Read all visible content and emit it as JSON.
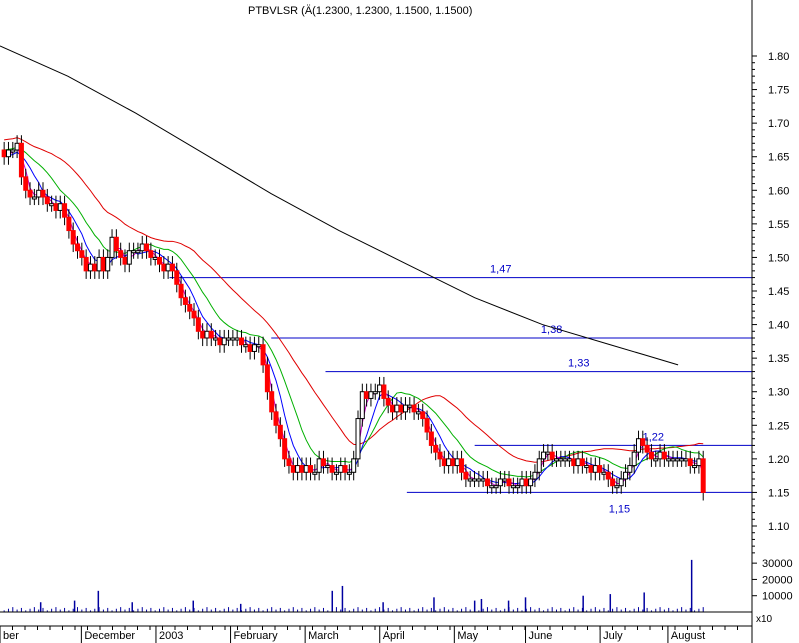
{
  "chart_data": {
    "type": "candlestick",
    "title": "PTBVLSR (Ä(1.2300, 1.2300, 1.1500, 1.1500)",
    "price_axis": {
      "ticks": [
        "1.80",
        "1.75",
        "1.70",
        "1.65",
        "1.60",
        "1.55",
        "1.50",
        "1.45",
        "1.40",
        "1.35",
        "1.30",
        "1.25",
        "1.20",
        "1.15",
        "1.10"
      ],
      "range": [
        1.05,
        1.87
      ]
    },
    "volume_axis": {
      "ticks": [
        "30000",
        "20000",
        "10000"
      ],
      "multiplier": "x10",
      "range": [
        0,
        35000
      ]
    },
    "x_axis": {
      "labels": [
        "ber",
        "December",
        "2003",
        "February",
        "March",
        "April",
        "May",
        "June",
        "July",
        "August"
      ],
      "positions": [
        0,
        24,
        46,
        68,
        90,
        112,
        134,
        155,
        177,
        197
      ]
    },
    "horizontal_lines": [
      {
        "label": "1,47",
        "value": 1.47,
        "from": 50
      },
      {
        "label": "1,38",
        "value": 1.38,
        "from": 80
      },
      {
        "label": "1,33",
        "value": 1.33,
        "from": 96
      },
      {
        "label": "1,22",
        "value": 1.22,
        "from": 140
      },
      {
        "label": "1,15",
        "value": 1.15,
        "from": 120
      }
    ],
    "line_color": "#0000c8",
    "ma_colors": {
      "long": "#000000",
      "medium": "#e00000",
      "short": "#00b000",
      "fast": "#0000ff",
      "fastest": "#d000d0"
    },
    "long_ma": [
      [
        0,
        1.815
      ],
      [
        20,
        1.77
      ],
      [
        40,
        1.715
      ],
      [
        60,
        1.655
      ],
      [
        80,
        1.595
      ],
      [
        100,
        1.54
      ],
      [
        120,
        1.49
      ],
      [
        140,
        1.44
      ],
      [
        160,
        1.4
      ],
      [
        180,
        1.37
      ],
      [
        190,
        1.355
      ],
      [
        200,
        1.34
      ]
    ],
    "closes": [
      1.65,
      1.66,
      1.66,
      1.67,
      1.62,
      1.6,
      1.59,
      1.59,
      1.6,
      1.59,
      1.58,
      1.58,
      1.57,
      1.58,
      1.56,
      1.54,
      1.52,
      1.51,
      1.5,
      1.48,
      1.49,
      1.48,
      1.5,
      1.48,
      1.5,
      1.53,
      1.51,
      1.5,
      1.49,
      1.51,
      1.51,
      1.51,
      1.52,
      1.51,
      1.5,
      1.5,
      1.49,
      1.48,
      1.49,
      1.48,
      1.46,
      1.44,
      1.43,
      1.42,
      1.41,
      1.39,
      1.38,
      1.39,
      1.38,
      1.38,
      1.37,
      1.38,
      1.38,
      1.38,
      1.38,
      1.37,
      1.37,
      1.36,
      1.37,
      1.37,
      1.34,
      1.3,
      1.27,
      1.25,
      1.23,
      1.2,
      1.19,
      1.18,
      1.19,
      1.18,
      1.19,
      1.18,
      1.18,
      1.2,
      1.19,
      1.19,
      1.18,
      1.18,
      1.19,
      1.18,
      1.18,
      1.2,
      1.26,
      1.3,
      1.29,
      1.3,
      1.3,
      1.31,
      1.29,
      1.28,
      1.27,
      1.28,
      1.27,
      1.28,
      1.28,
      1.27,
      1.27,
      1.26,
      1.24,
      1.22,
      1.21,
      1.2,
      1.19,
      1.2,
      1.19,
      1.2,
      1.18,
      1.17,
      1.17,
      1.17,
      1.17,
      1.17,
      1.16,
      1.16,
      1.16,
      1.17,
      1.17,
      1.16,
      1.16,
      1.16,
      1.17,
      1.16,
      1.17,
      1.18,
      1.2,
      1.21,
      1.21,
      1.2,
      1.2,
      1.2,
      1.2,
      1.2,
      1.19,
      1.2,
      1.19,
      1.19,
      1.18,
      1.19,
      1.18,
      1.18,
      1.17,
      1.16,
      1.16,
      1.17,
      1.18,
      1.19,
      1.21,
      1.23,
      1.22,
      1.21,
      1.2,
      1.2,
      1.21,
      1.2,
      1.2,
      1.2,
      1.2,
      1.2,
      1.2,
      1.19,
      1.19,
      1.2,
      1.15
    ],
    "volume_spikes": [
      [
        12,
        6000
      ],
      [
        22,
        7000
      ],
      [
        29,
        13000
      ],
      [
        39,
        6000
      ],
      [
        57,
        7000
      ],
      [
        71,
        5000
      ],
      [
        98,
        13000
      ],
      [
        101,
        16000
      ],
      [
        113,
        6000
      ],
      [
        128,
        9000
      ],
      [
        140,
        7000
      ],
      [
        142,
        8000
      ],
      [
        150,
        7000
      ],
      [
        155,
        9000
      ],
      [
        172,
        10000
      ],
      [
        180,
        11000
      ],
      [
        190,
        12000
      ],
      [
        204,
        32000
      ]
    ]
  }
}
